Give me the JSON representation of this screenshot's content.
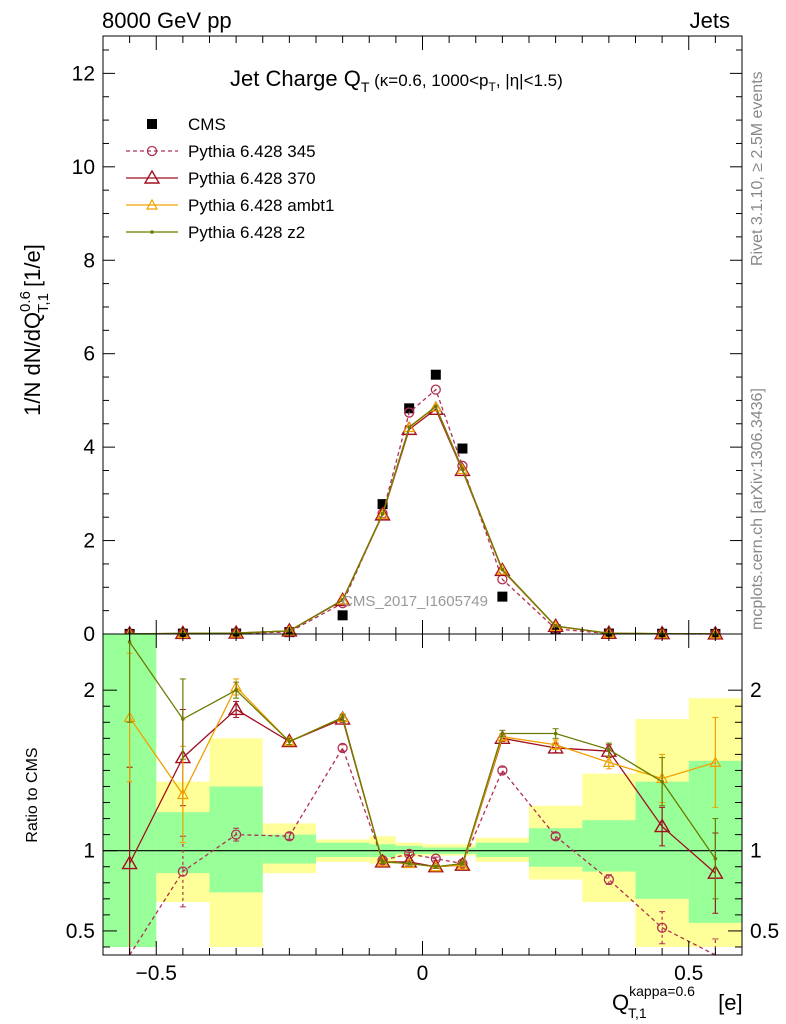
{
  "header": {
    "left": "8000 GeV pp",
    "right": "Jets",
    "rivet": "Rivet 3.1.10, ≥ 2.5M events",
    "mcplots": "mcplots.cern.ch [arXiv:1306.3436]",
    "watermark": "CMS_2017_I1605749"
  },
  "chart_data": [
    {
      "type": "scatter",
      "panel": "main",
      "title": "Jet Charge Q_T (κ=0.6, 1000<p_T, |η|<1.5)",
      "title_parts": {
        "main": "Jet Charge Q",
        "sub": "T",
        "rest": " (κ=0.6, 1000<p",
        "sub2": "T",
        "rest2": ", |η|<1.5)"
      },
      "ylabel": "1/N dN/dQ_T,1^0.6 [1/e]",
      "ylabel_parts": {
        "a": "1/N dN/dQ",
        "sup": "0.6",
        "sub": "T,1",
        "b": " [1/e]"
      },
      "xlim": [
        -0.6,
        0.6
      ],
      "ylim": [
        0,
        12.8
      ],
      "yticks": [
        0,
        2,
        4,
        6,
        8,
        10,
        12
      ],
      "legend_position": "top-left",
      "x": [
        -0.55,
        -0.45,
        -0.35,
        -0.25,
        -0.15,
        -0.075,
        -0.025,
        0.025,
        0.075,
        0.15,
        0.25,
        0.35,
        0.45,
        0.55
      ],
      "bins": [
        [
          -0.6,
          -0.5
        ],
        [
          -0.5,
          -0.4
        ],
        [
          -0.4,
          -0.3
        ],
        [
          -0.3,
          -0.2
        ],
        [
          -0.2,
          -0.1
        ],
        [
          -0.1,
          -0.05
        ],
        [
          -0.05,
          0
        ],
        [
          0,
          0.05
        ],
        [
          0.05,
          0.1
        ],
        [
          0.1,
          0.2
        ],
        [
          0.2,
          0.3
        ],
        [
          0.3,
          0.4
        ],
        [
          0.4,
          0.5
        ],
        [
          0.5,
          0.6
        ]
      ],
      "series": [
        {
          "name": "CMS",
          "color": "#000000",
          "marker": "square",
          "line": "none",
          "values": [
            0.002,
            0.008,
            0.01,
            0.04,
            0.4,
            2.78,
            4.83,
            5.55,
            3.97,
            0.8,
            0.1,
            0.01,
            0.005,
            0.002
          ]
        },
        {
          "name": "Pythia 6.428 345",
          "color": "#b03050",
          "marker": "open-circle",
          "line": "dashed",
          "values": [
            0.0,
            0.007,
            0.011,
            0.044,
            0.66,
            2.58,
            4.74,
            5.23,
            3.6,
            1.17,
            0.11,
            0.008,
            0.003,
            0.0
          ]
        },
        {
          "name": "Pythia 6.428 370",
          "color": "#a01020",
          "marker": "open-triangle",
          "line": "solid",
          "values": [
            0.002,
            0.012,
            0.019,
            0.067,
            0.72,
            2.55,
            4.38,
            4.81,
            3.5,
            1.36,
            0.165,
            0.016,
            0.006,
            0.002
          ]
        },
        {
          "name": "Pythia 6.428 ambt1",
          "color": "#f0a000",
          "marker": "open-triangle-small",
          "line": "solid",
          "values": [
            0.004,
            0.011,
            0.02,
            0.067,
            0.73,
            2.56,
            4.42,
            4.86,
            3.52,
            1.37,
            0.163,
            0.016,
            0.007,
            0.003
          ]
        },
        {
          "name": "Pythia 6.428 z2",
          "color": "#6b7a00",
          "marker": "dot",
          "line": "solid",
          "values": [
            0.005,
            0.013,
            0.02,
            0.067,
            0.73,
            2.57,
            4.43,
            4.87,
            3.53,
            1.38,
            0.17,
            0.016,
            0.007,
            0.002
          ]
        }
      ]
    },
    {
      "type": "line",
      "panel": "ratio",
      "ylabel": "Ratio to CMS",
      "xlabel": "Q_T,1^kappa=0.6 [e]",
      "xlabel_parts": {
        "a": "Q",
        "sup": "kappa=0.6",
        "sub": "T,1",
        "b": " [e]"
      },
      "xlim": [
        -0.6,
        0.6
      ],
      "ylim": [
        0.35,
        2.35
      ],
      "yticks": [
        0.5,
        1,
        2
      ],
      "yticklabels": [
        "0.5",
        "1",
        "2"
      ],
      "xticks": [
        -0.5,
        0,
        0.5
      ],
      "xticklabels": [
        "−0.5",
        "0",
        "0.5"
      ],
      "band_inner": [
        [
          0.4,
          2.4
        ],
        [
          0.86,
          1.24
        ],
        [
          0.74,
          1.4
        ],
        [
          0.92,
          1.1
        ],
        [
          0.96,
          1.05
        ],
        [
          0.96,
          1.04
        ],
        [
          0.98,
          1.03
        ],
        [
          0.98,
          1.02
        ],
        [
          0.98,
          1.02
        ],
        [
          0.96,
          1.05
        ],
        [
          0.9,
          1.14
        ],
        [
          0.87,
          1.19
        ],
        [
          0.7,
          1.43
        ],
        [
          0.55,
          1.56
        ]
      ],
      "band_outer": [
        [
          0.4,
          2.4
        ],
        [
          0.68,
          1.43
        ],
        [
          0.4,
          1.7
        ],
        [
          0.86,
          1.17
        ],
        [
          0.93,
          1.07
        ],
        [
          0.92,
          1.09
        ],
        [
          0.96,
          1.05
        ],
        [
          0.97,
          1.04
        ],
        [
          0.97,
          1.04
        ],
        [
          0.93,
          1.08
        ],
        [
          0.82,
          1.28
        ],
        [
          0.68,
          1.48
        ],
        [
          0.4,
          1.82
        ],
        [
          0.4,
          1.95
        ]
      ],
      "series": [
        {
          "name": "Pythia 6.428 345",
          "color": "#b03050",
          "values": [
            0.0,
            0.87,
            1.1,
            1.09,
            1.64,
            0.94,
            0.98,
            0.95,
            0.92,
            1.5,
            1.09,
            0.82,
            0.52,
            0.3
          ],
          "errors": [
            0,
            0.22,
            0.04,
            0.02,
            0.02,
            0.01,
            0.01,
            0.01,
            0.01,
            0.02,
            0.02,
            0.03,
            0.1,
            0.15
          ]
        },
        {
          "name": "Pythia 6.428 370",
          "color": "#a01020",
          "values": [
            0.92,
            1.58,
            1.88,
            1.68,
            1.82,
            0.93,
            0.93,
            0.9,
            0.91,
            1.7,
            1.64,
            1.62,
            1.15,
            0.86
          ],
          "errors": [
            0.6,
            0.3,
            0.05,
            0.02,
            0.02,
            0.01,
            0.01,
            0.01,
            0.01,
            0.02,
            0.03,
            0.04,
            0.12,
            0.25
          ]
        },
        {
          "name": "Pythia 6.428 ambt1",
          "color": "#f0a000",
          "values": [
            1.83,
            1.35,
            2.02,
            1.68,
            1.83,
            0.93,
            0.92,
            0.9,
            0.91,
            1.71,
            1.66,
            1.55,
            1.45,
            1.55
          ],
          "errors": [
            0.4,
            0.3,
            0.05,
            0.02,
            0.02,
            0.01,
            0.01,
            0.01,
            0.01,
            0.02,
            0.03,
            0.04,
            0.15,
            0.28
          ]
        },
        {
          "name": "Pythia 6.428 z2",
          "color": "#6b7a00",
          "values": [
            2.3,
            1.82,
            2.0,
            1.68,
            1.83,
            0.93,
            0.92,
            0.9,
            0.92,
            1.73,
            1.73,
            1.63,
            1.43,
            0.95
          ],
          "errors": [
            0.5,
            0.25,
            0.05,
            0.02,
            0.02,
            0.01,
            0.01,
            0.01,
            0.01,
            0.02,
            0.03,
            0.04,
            0.15,
            0.25
          ]
        }
      ]
    }
  ]
}
